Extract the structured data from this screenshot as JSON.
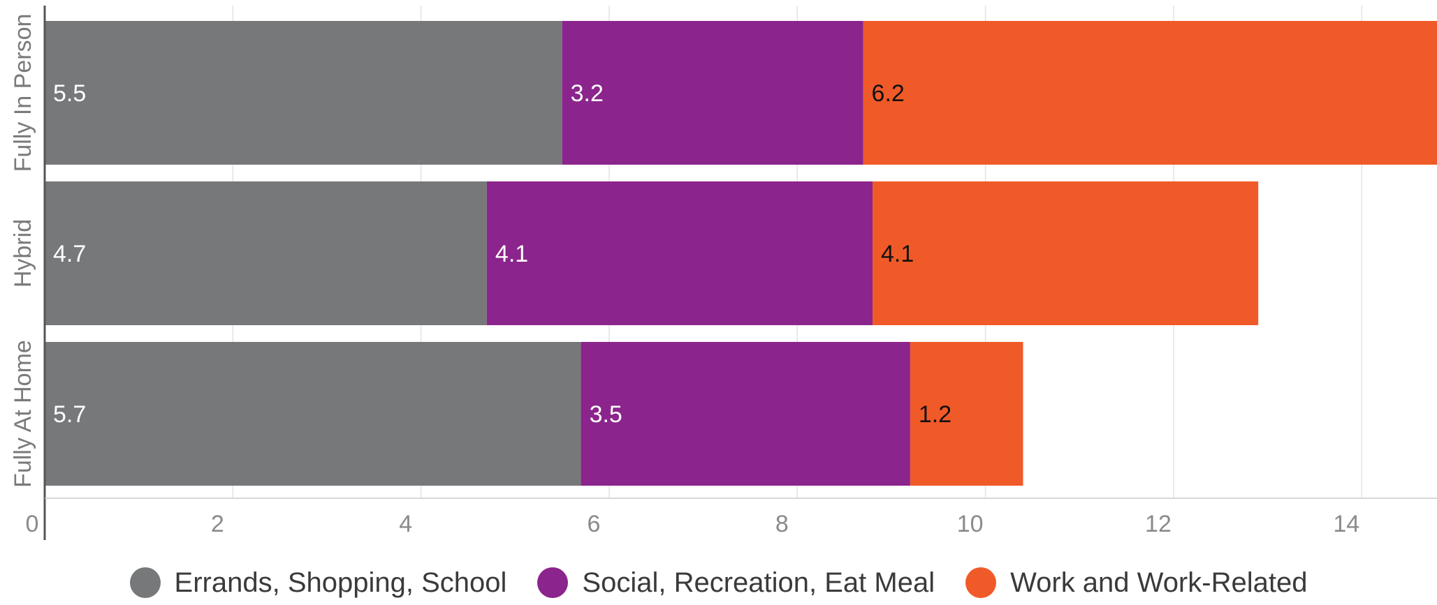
{
  "chart_data": {
    "type": "bar",
    "orientation": "horizontal",
    "stacked": true,
    "title": "",
    "xlabel": "",
    "ylabel": "",
    "categories": [
      "Fully In Person",
      "Hybrid",
      "Fully At Home"
    ],
    "series": [
      {
        "name": "Errands, Shopping, School",
        "color": "#77787a",
        "values": [
          5.5,
          4.7,
          5.7
        ],
        "value_labels": [
          "5.5",
          "4.7",
          "5.7"
        ],
        "label_color": "#ffffff"
      },
      {
        "name": "Social, Recreation, Eat Meal",
        "color": "#8b248c",
        "values": [
          3.2,
          4.1,
          3.5
        ],
        "value_labels": [
          "3.2",
          "4.1",
          "3.5"
        ],
        "label_color": "#ffffff"
      },
      {
        "name": "Work and Work-Related",
        "color": "#f05a28",
        "values": [
          6.2,
          4.1,
          1.2
        ],
        "value_labels": [
          "6.2",
          "4.1",
          "1.2"
        ],
        "label_color": "#111111"
      }
    ],
    "xlim": [
      0,
      14.8
    ],
    "x_ticks": [
      "0",
      "2",
      "4",
      "6",
      "8",
      "10",
      "12",
      "14"
    ],
    "x_tick_values": [
      0,
      2,
      4,
      6,
      8,
      10,
      12,
      14
    ],
    "grid": true,
    "legend_position": "bottom"
  }
}
